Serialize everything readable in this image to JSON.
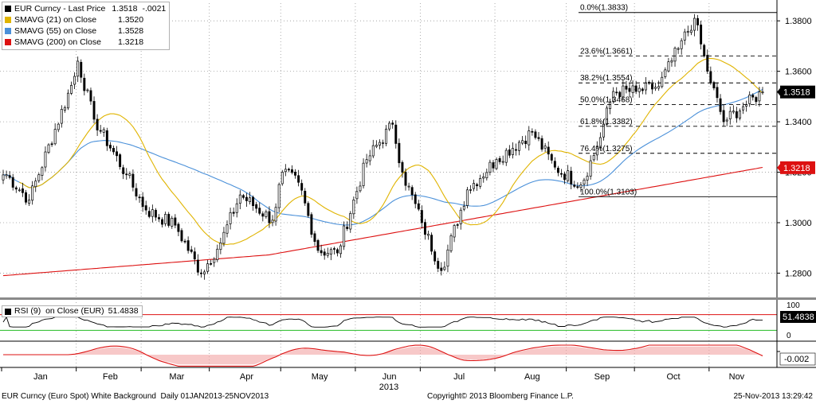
{
  "legend": [
    {
      "label": "EUR Curncy - Last Price",
      "v1": "1.3518",
      "v2": "-.0021",
      "color": "#000000"
    },
    {
      "label": "SMAVG (21) on Close",
      "v1": "1.3520",
      "v2": "",
      "color": "#e0b400"
    },
    {
      "label": "SMAVG (55) on Close",
      "v1": "1.3528",
      "v2": "",
      "color": "#4a90d9"
    },
    {
      "label": "SMAVG (200) on Close",
      "v1": "1.3218",
      "v2": "",
      "color": "#dd1111"
    }
  ],
  "rsi_legend": {
    "label": "RSI (9)  on Close (EUR)",
    "value": "51.4838"
  },
  "footer": {
    "left": "EUR Curncy (Euro Spot) White Background  Daily 01JAN2013-25NOV2013",
    "center": "Copyright© 2013 Bloomberg Finance L.P.",
    "right": "25-Nov-2013 13:29:42"
  },
  "chart_data": {
    "type": "candlestick",
    "x_labels": [
      "Jan",
      "Feb",
      "Mar",
      "Apr",
      "May",
      "Jun",
      "Jul",
      "Aug",
      "Sep",
      "Oct",
      "Nov"
    ],
    "year_label": "2013",
    "price_axis": {
      "ticks": [
        "1.3800",
        "1.3600",
        "1.3400",
        "1.3200",
        "1.3000",
        "1.2800"
      ],
      "ylim": [
        1.271,
        1.387
      ]
    },
    "last_price": "1.3518",
    "sma200_badge": "1.3218",
    "rsi_axis": {
      "ticks": [
        "100",
        "50",
        "0"
      ],
      "ylim": [
        0,
        100
      ],
      "value_badge": "51.4838"
    },
    "osc_axis": {
      "badge": "-0.002"
    },
    "fibonacci": [
      {
        "label": "0.0%(1.3833)",
        "level": 1.3833
      },
      {
        "label": "23.6%(1.3661)",
        "level": 1.3661
      },
      {
        "label": "38.2%(1.3554)",
        "level": 1.3554
      },
      {
        "label": "50.0%(1.3468)",
        "level": 1.3468
      },
      {
        "label": "61.8%(1.3382)",
        "level": 1.3382
      },
      {
        "label": "76.4%(1.3275)",
        "level": 1.3275
      },
      {
        "label": "100.0%(1.3103)",
        "level": 1.3103
      }
    ],
    "close_anchors": [
      [
        "2013-01-02",
        1.319
      ],
      [
        "2013-01-11",
        1.309
      ],
      [
        "2013-01-31",
        1.358
      ],
      [
        "2013-02-01",
        1.364
      ],
      [
        "2013-02-08",
        1.341
      ],
      [
        "2013-02-22",
        1.319
      ],
      [
        "2013-03-04",
        1.305
      ],
      [
        "2013-03-15",
        1.299
      ],
      [
        "2013-03-27",
        1.28
      ],
      [
        "2013-04-04",
        1.292
      ],
      [
        "2013-04-12",
        1.311
      ],
      [
        "2013-04-26",
        1.301
      ],
      [
        "2013-05-01",
        1.32
      ],
      [
        "2013-05-08",
        1.316
      ],
      [
        "2013-05-16",
        1.289
      ],
      [
        "2013-05-24",
        1.288
      ],
      [
        "2013-06-06",
        1.325
      ],
      [
        "2013-06-18",
        1.339
      ],
      [
        "2013-06-21",
        1.32
      ],
      [
        "2013-07-01",
        1.3
      ],
      [
        "2013-07-09",
        1.281
      ],
      [
        "2013-07-19",
        1.313
      ],
      [
        "2013-08-01",
        1.325
      ],
      [
        "2013-08-16",
        1.336
      ],
      [
        "2013-08-27",
        1.322
      ],
      [
        "2013-09-06",
        1.315
      ],
      [
        "2013-09-13",
        1.33
      ],
      [
        "2013-09-20",
        1.352
      ],
      [
        "2013-10-01",
        1.352
      ],
      [
        "2013-10-10",
        1.354
      ],
      [
        "2013-10-18",
        1.369
      ],
      [
        "2013-10-25",
        1.381
      ],
      [
        "2013-10-31",
        1.36
      ],
      [
        "2013-11-07",
        1.34
      ],
      [
        "2013-11-15",
        1.346
      ],
      [
        "2013-11-25",
        1.3518
      ]
    ],
    "series": [
      {
        "name": "EUR Curncy - Last Price",
        "kind": "candles"
      },
      {
        "name": "SMAVG (21) on Close",
        "kind": "sma",
        "period": 21,
        "last": 1.352
      },
      {
        "name": "SMAVG (55) on Close",
        "kind": "sma",
        "period": 55,
        "last": 1.3528
      },
      {
        "name": "SMAVG (200) on Close",
        "kind": "sma",
        "period": 200,
        "last": 1.3218
      },
      {
        "name": "RSI (9)  on Close (EUR)",
        "kind": "rsi",
        "period": 9,
        "last": 51.4838
      }
    ],
    "grid": true,
    "legend_position": "top-left"
  }
}
